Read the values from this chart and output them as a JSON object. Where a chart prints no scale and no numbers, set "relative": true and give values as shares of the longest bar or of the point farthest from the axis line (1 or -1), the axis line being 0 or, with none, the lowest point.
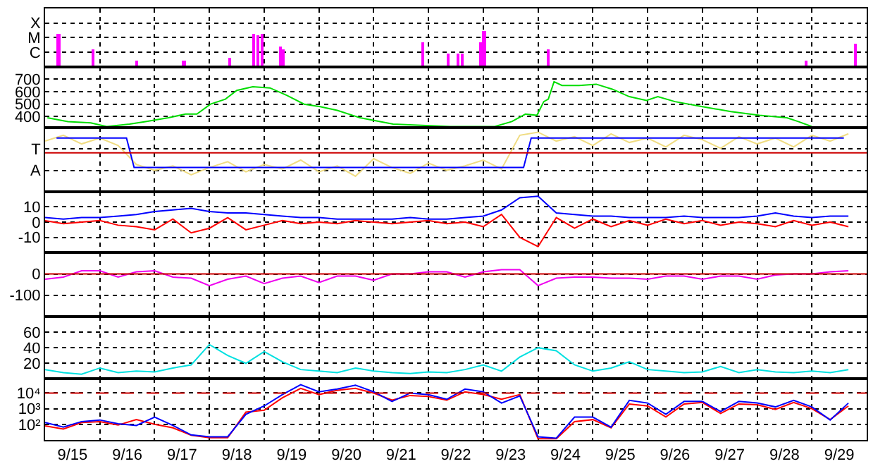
{
  "chart_data": [
    {
      "type": "bar",
      "xlim": [
        "--09-15",
        "--09-30"
      ],
      "relative": true,
      "annotations": [
        "X",
        "M",
        "C"
      ],
      "grid": true,
      "tick_labels": "y",
      "xticks": [
        {
          "value": "--09-15T12:00",
          "label": "9/15"
        },
        {
          "value": "--09-16T12:00",
          "label": "9/16"
        },
        {
          "value": "--09-17T12:00",
          "label": "9/17"
        },
        {
          "value": "--09-18T12:00",
          "label": "9/18"
        },
        {
          "value": "--09-19T12:00",
          "label": "9/19"
        },
        {
          "value": "--09-20T12:00",
          "label": "9/20"
        },
        {
          "value": "--09-21T12:00",
          "label": "9/21"
        },
        {
          "value": "--09-22T12:00",
          "label": "9/22"
        },
        {
          "value": "--09-23T12:00",
          "label": "9/23"
        },
        {
          "value": "--09-24T12:00",
          "label": "9/24"
        },
        {
          "value": "--09-25T12:00",
          "label": "9/25"
        },
        {
          "value": "--09-26T12:00",
          "label": "9/26"
        },
        {
          "value": "--09-27T12:00",
          "label": "9/27"
        },
        {
          "value": "--09-28T12:00",
          "label": "9/28"
        },
        {
          "value": "--09-29T12:00",
          "label": "9/29"
        },
        {
          "value": "--09-16",
          "label": null
        },
        {
          "value": "--09-17",
          "label": null
        },
        {
          "value": "--09-18",
          "label": null
        },
        {
          "value": "--09-19",
          "label": null
        },
        {
          "value": "--09-20",
          "label": null
        },
        {
          "value": "--09-21",
          "label": null
        },
        {
          "value": "--09-22",
          "label": null
        },
        {
          "value": "--09-23",
          "label": null
        },
        {
          "value": "--09-24",
          "label": null
        },
        {
          "value": "--09-25",
          "label": null
        },
        {
          "value": "--09-26",
          "label": null
        },
        {
          "value": "--09-27",
          "label": null
        },
        {
          "value": "--09-28",
          "label": null
        },
        {
          "value": "--09-29",
          "label": null
        }
      ],
      "series": [
        {
          "color": "#ff00ff",
          "x": [
            "--09-15T06:00",
            "--09-15T21:00",
            "--09-16T16:30",
            "--09-17T13:00",
            "--09-18T09:00",
            "--09-18T19:30",
            "--09-18T21:30",
            "--09-18T23:20",
            "--09-19T07:30",
            "--09-19T08:40",
            "--09-21T21:30",
            "--09-22T08:40",
            "--09-22T13:00",
            "--09-22T14:50",
            "--09-22T22:50",
            "--09-23T00:30",
            "--09-24T04:20",
            "--09-28T21:30",
            "--09-29T19:00"
          ],
          "values": [
            0.92,
            0.46,
            0.15,
            0.15,
            0.23,
            0.92,
            0.85,
            0.92,
            0.54,
            0.46,
            0.69,
            0.38,
            0.38,
            0.38,
            0.69,
            1,
            0.46,
            0.15,
            0.62
          ]
        }
      ]
    },
    {
      "type": "line",
      "xlim": [
        "--09-15",
        "--09-30"
      ],
      "ylim": [
        310,
        800
      ],
      "yticks": [
        400,
        500,
        600,
        700
      ],
      "grid": true,
      "tick_labels": "y",
      "xticks": [
        {
          "value": "--09-15T12:00",
          "label": "9/15"
        },
        {
          "value": "--09-16T12:00",
          "label": "9/16"
        },
        {
          "value": "--09-17T12:00",
          "label": "9/17"
        },
        {
          "value": "--09-18T12:00",
          "label": "9/18"
        },
        {
          "value": "--09-19T12:00",
          "label": "9/19"
        },
        {
          "value": "--09-20T12:00",
          "label": "9/20"
        },
        {
          "value": "--09-21T12:00",
          "label": "9/21"
        },
        {
          "value": "--09-22T12:00",
          "label": "9/22"
        },
        {
          "value": "--09-23T12:00",
          "label": "9/23"
        },
        {
          "value": "--09-24T12:00",
          "label": "9/24"
        },
        {
          "value": "--09-25T12:00",
          "label": "9/25"
        },
        {
          "value": "--09-26T12:00",
          "label": "9/26"
        },
        {
          "value": "--09-27T12:00",
          "label": "9/27"
        },
        {
          "value": "--09-28T12:00",
          "label": "9/28"
        },
        {
          "value": "--09-29T12:00",
          "label": "9/29"
        },
        {
          "value": "--09-16",
          "label": null
        },
        {
          "value": "--09-17",
          "label": null
        },
        {
          "value": "--09-18",
          "label": null
        },
        {
          "value": "--09-19",
          "label": null
        },
        {
          "value": "--09-20",
          "label": null
        },
        {
          "value": "--09-21",
          "label": null
        },
        {
          "value": "--09-22",
          "label": null
        },
        {
          "value": "--09-23",
          "label": null
        },
        {
          "value": "--09-24",
          "label": null
        },
        {
          "value": "--09-25",
          "label": null
        },
        {
          "value": "--09-26",
          "label": null
        },
        {
          "value": "--09-27",
          "label": null
        },
        {
          "value": "--09-28",
          "label": null
        },
        {
          "value": "--09-29",
          "label": null
        }
      ],
      "series": [
        {
          "color": "#00dd00",
          "x": [
            "--09-15T01:00",
            "--09-15T10:00",
            "--09-15T20:00",
            "--09-16T03:00",
            "--09-16T13:00",
            "--09-16T20:00",
            "--09-17T06:00",
            "--09-17T13:30",
            "--09-17T18:30",
            "--09-18T00:30",
            "--09-18T07:00",
            "--09-18T12:00",
            "--09-18T19:00",
            "--09-19T02:30",
            "--09-19T10:00",
            "--09-19T17:30",
            "--09-20T00:30",
            "--09-20T08:00",
            "--09-20T18:00",
            "--09-21T08:30",
            "--09-21T21:00",
            "--09-22T09:30",
            "--09-22T21:30",
            "--09-23T05:00",
            "--09-23T12:30",
            "--09-23T18:30",
            "--09-23T23:30",
            "--09-24T02:30",
            "--09-24T04:30",
            "--09-24T07:00",
            "--09-24T10:30",
            "--09-24T18:00",
            "--09-25T01:30",
            "--09-25T08:30",
            "--09-25T16:00",
            "--09-25T23:30",
            "--09-26T04:30",
            "--09-26T12:00",
            "--09-27T00:00",
            "--09-27T12:30",
            "--09-28T01:00",
            "--09-28T13:00",
            "--09-28T18:00",
            "--09-29T00:00"
          ],
          "values": [
            390,
            360,
            350,
            320,
            340,
            360,
            390,
            420,
            420,
            500,
            540,
            610,
            640,
            630,
            570,
            500,
            480,
            450,
            390,
            340,
            330,
            320,
            320,
            320,
            360,
            420,
            410,
            520,
            540,
            680,
            650,
            650,
            660,
            620,
            560,
            530,
            560,
            520,
            480,
            440,
            410,
            390,
            360,
            320
          ]
        }
      ]
    },
    {
      "type": "line",
      "xlim": [
        "--09-15",
        "--09-30"
      ],
      "relative": true,
      "annotations": [
        "T",
        "A"
      ],
      "grid": true,
      "tick_labels": "y",
      "xticks": [
        {
          "value": "--09-15T12:00",
          "label": "9/15"
        },
        {
          "value": "--09-16T12:00",
          "label": "9/16"
        },
        {
          "value": "--09-17T12:00",
          "label": "9/17"
        },
        {
          "value": "--09-18T12:00",
          "label": "9/18"
        },
        {
          "value": "--09-19T12:00",
          "label": "9/19"
        },
        {
          "value": "--09-20T12:00",
          "label": "9/20"
        },
        {
          "value": "--09-21T12:00",
          "label": "9/21"
        },
        {
          "value": "--09-22T12:00",
          "label": "9/22"
        },
        {
          "value": "--09-23T12:00",
          "label": "9/23"
        },
        {
          "value": "--09-24T12:00",
          "label": "9/24"
        },
        {
          "value": "--09-25T12:00",
          "label": "9/25"
        },
        {
          "value": "--09-26T12:00",
          "label": "9/26"
        },
        {
          "value": "--09-27T12:00",
          "label": "9/27"
        },
        {
          "value": "--09-28T12:00",
          "label": "9/28"
        },
        {
          "value": "--09-29T12:00",
          "label": "9/29"
        },
        {
          "value": "--09-16",
          "label": null
        },
        {
          "value": "--09-17",
          "label": null
        },
        {
          "value": "--09-18",
          "label": null
        },
        {
          "value": "--09-19",
          "label": null
        },
        {
          "value": "--09-20",
          "label": null
        },
        {
          "value": "--09-21",
          "label": null
        },
        {
          "value": "--09-22",
          "label": null
        },
        {
          "value": "--09-23",
          "label": null
        },
        {
          "value": "--09-24",
          "label": null
        },
        {
          "value": "--09-25",
          "label": null
        },
        {
          "value": "--09-26",
          "label": null
        },
        {
          "value": "--09-27",
          "label": null
        },
        {
          "value": "--09-28",
          "label": null
        },
        {
          "value": "--09-29",
          "label": null
        }
      ],
      "ref_lines": [
        {
          "axis": "y",
          "value": 0,
          "color": "#cc0000"
        }
      ],
      "x": [
        "--09-15T00:00",
        "--09-15T08:00",
        "--09-15T16:00",
        "--09-16T00:00",
        "--09-16T08:00",
        "--09-16T16:00",
        "--09-17T00:00",
        "--09-17T08:00",
        "--09-17T16:00",
        "--09-18T00:00",
        "--09-18T08:00",
        "--09-18T16:00",
        "--09-19T00:00",
        "--09-19T08:00",
        "--09-19T16:00",
        "--09-20T00:00",
        "--09-20T08:00",
        "--09-20T16:00",
        "--09-21T00:00",
        "--09-21T08:00",
        "--09-21T16:00",
        "--09-22T00:00",
        "--09-22T08:00",
        "--09-22T16:00",
        "--09-23T00:00",
        "--09-23T08:00",
        "--09-23T16:00",
        "--09-24T00:00",
        "--09-24T08:00",
        "--09-24T16:00",
        "--09-25T00:00",
        "--09-25T08:00",
        "--09-25T16:00",
        "--09-26T00:00",
        "--09-26T08:00",
        "--09-26T16:00",
        "--09-27T00:00",
        "--09-27T08:00",
        "--09-27T16:00",
        "--09-28T00:00",
        "--09-28T08:00",
        "--09-28T16:00",
        "--09-29T00:00",
        "--09-29T08:00",
        "--09-29T16:00"
      ],
      "series": [
        {
          "color": "#f0dc82",
          "values": [
            0.5,
            0.75,
            0.38,
            0.63,
            0.31,
            -0.5,
            -0.75,
            -0.56,
            -0.94,
            -0.63,
            -0.38,
            -0.81,
            -0.5,
            -0.69,
            -0.31,
            -0.81,
            -0.56,
            -1,
            -0.25,
            -0.63,
            -0.88,
            -0.44,
            -0.75,
            -0.56,
            -0.31,
            -0.69,
            0.75,
            0.88,
            0.5,
            0.69,
            0.31,
            0.81,
            0.44,
            0.63,
            0.25,
            0.75,
            0.56,
            0.19,
            0.69,
            0.38,
            0.63,
            0.25,
            0.75,
            0.5,
            0.81
          ]
        },
        {
          "color": "#0000ff",
          "x": [
            "--09-15T05:00",
            "--09-16T11:40",
            "--09-16T15:00",
            "--09-23T17:40",
            "--09-23T21:00",
            "--09-29T14:00"
          ],
          "values": [
            0.63,
            0.63,
            -0.63,
            -0.63,
            0.63,
            0.63
          ]
        }
      ]
    },
    {
      "type": "line",
      "xlim": [
        "--09-15",
        "--09-30"
      ],
      "ylim": [
        -20,
        20
      ],
      "yticks": [
        -10,
        0,
        10
      ],
      "grid": true,
      "tick_labels": "y",
      "xticks": [
        {
          "value": "--09-15T12:00",
          "label": "9/15"
        },
        {
          "value": "--09-16T12:00",
          "label": "9/16"
        },
        {
          "value": "--09-17T12:00",
          "label": "9/17"
        },
        {
          "value": "--09-18T12:00",
          "label": "9/18"
        },
        {
          "value": "--09-19T12:00",
          "label": "9/19"
        },
        {
          "value": "--09-20T12:00",
          "label": "9/20"
        },
        {
          "value": "--09-21T12:00",
          "label": "9/21"
        },
        {
          "value": "--09-22T12:00",
          "label": "9/22"
        },
        {
          "value": "--09-23T12:00",
          "label": "9/23"
        },
        {
          "value": "--09-24T12:00",
          "label": "9/24"
        },
        {
          "value": "--09-25T12:00",
          "label": "9/25"
        },
        {
          "value": "--09-26T12:00",
          "label": "9/26"
        },
        {
          "value": "--09-27T12:00",
          "label": "9/27"
        },
        {
          "value": "--09-28T12:00",
          "label": "9/28"
        },
        {
          "value": "--09-29T12:00",
          "label": "9/29"
        },
        {
          "value": "--09-16",
          "label": null
        },
        {
          "value": "--09-17",
          "label": null
        },
        {
          "value": "--09-18",
          "label": null
        },
        {
          "value": "--09-19",
          "label": null
        },
        {
          "value": "--09-20",
          "label": null
        },
        {
          "value": "--09-21",
          "label": null
        },
        {
          "value": "--09-22",
          "label": null
        },
        {
          "value": "--09-23",
          "label": null
        },
        {
          "value": "--09-24",
          "label": null
        },
        {
          "value": "--09-25",
          "label": null
        },
        {
          "value": "--09-26",
          "label": null
        },
        {
          "value": "--09-27",
          "label": null
        },
        {
          "value": "--09-28",
          "label": null
        },
        {
          "value": "--09-29",
          "label": null
        }
      ],
      "x": [
        "--09-15T00:00",
        "--09-15T08:00",
        "--09-15T16:00",
        "--09-16T00:00",
        "--09-16T08:00",
        "--09-16T16:00",
        "--09-17T00:00",
        "--09-17T08:00",
        "--09-17T16:00",
        "--09-18T00:00",
        "--09-18T08:00",
        "--09-18T16:00",
        "--09-19T00:00",
        "--09-19T08:00",
        "--09-19T16:00",
        "--09-20T00:00",
        "--09-20T08:00",
        "--09-20T16:00",
        "--09-21T00:00",
        "--09-21T08:00",
        "--09-21T16:00",
        "--09-22T00:00",
        "--09-22T08:00",
        "--09-22T16:00",
        "--09-23T00:00",
        "--09-23T08:00",
        "--09-23T16:00",
        "--09-24T00:00",
        "--09-24T08:00",
        "--09-24T16:00",
        "--09-25T00:00",
        "--09-25T08:00",
        "--09-25T16:00",
        "--09-26T00:00",
        "--09-26T08:00",
        "--09-26T16:00",
        "--09-27T00:00",
        "--09-27T08:00",
        "--09-27T16:00",
        "--09-28T00:00",
        "--09-28T08:00",
        "--09-28T16:00",
        "--09-29T00:00",
        "--09-29T08:00",
        "--09-29T16:00"
      ],
      "series": [
        {
          "color": "#0000ff",
          "values": [
            3,
            2,
            3,
            3,
            4,
            5,
            7,
            8,
            9,
            7,
            6,
            6,
            5,
            4,
            3,
            3,
            2,
            2,
            2,
            2,
            3,
            2,
            2,
            3,
            4,
            8,
            16,
            17,
            6,
            5,
            4,
            4,
            3,
            3,
            3,
            4,
            3,
            3,
            3,
            4,
            6,
            4,
            3,
            4,
            4
          ]
        },
        {
          "color": "#ff0000",
          "values": [
            1,
            -1,
            0,
            1,
            -2,
            -3,
            -5,
            2,
            -7,
            -4,
            3,
            -5,
            -2,
            1,
            -1,
            0,
            -1,
            1,
            0,
            -1,
            0,
            1,
            -1,
            0,
            -3,
            5,
            -10,
            -16,
            3,
            -4,
            2,
            -3,
            1,
            -2,
            2,
            -1,
            1,
            -2,
            0,
            -1,
            -3,
            1,
            -2,
            0,
            -3
          ]
        }
      ]
    },
    {
      "type": "line",
      "xlim": [
        "--09-15",
        "--09-30"
      ],
      "ylim": [
        -200,
        100
      ],
      "yticks": [
        -100,
        0
      ],
      "grid": true,
      "tick_labels": "y",
      "xticks": [
        {
          "value": "--09-15T12:00",
          "label": "9/15"
        },
        {
          "value": "--09-16T12:00",
          "label": "9/16"
        },
        {
          "value": "--09-17T12:00",
          "label": "9/17"
        },
        {
          "value": "--09-18T12:00",
          "label": "9/18"
        },
        {
          "value": "--09-19T12:00",
          "label": "9/19"
        },
        {
          "value": "--09-20T12:00",
          "label": "9/20"
        },
        {
          "value": "--09-21T12:00",
          "label": "9/21"
        },
        {
          "value": "--09-22T12:00",
          "label": "9/22"
        },
        {
          "value": "--09-23T12:00",
          "label": "9/23"
        },
        {
          "value": "--09-24T12:00",
          "label": "9/24"
        },
        {
          "value": "--09-25T12:00",
          "label": "9/25"
        },
        {
          "value": "--09-26T12:00",
          "label": "9/26"
        },
        {
          "value": "--09-27T12:00",
          "label": "9/27"
        },
        {
          "value": "--09-28T12:00",
          "label": "9/28"
        },
        {
          "value": "--09-29T12:00",
          "label": "9/29"
        },
        {
          "value": "--09-16",
          "label": null
        },
        {
          "value": "--09-17",
          "label": null
        },
        {
          "value": "--09-18",
          "label": null
        },
        {
          "value": "--09-19",
          "label": null
        },
        {
          "value": "--09-20",
          "label": null
        },
        {
          "value": "--09-21",
          "label": null
        },
        {
          "value": "--09-22",
          "label": null
        },
        {
          "value": "--09-23",
          "label": null
        },
        {
          "value": "--09-24",
          "label": null
        },
        {
          "value": "--09-25",
          "label": null
        },
        {
          "value": "--09-26",
          "label": null
        },
        {
          "value": "--09-27",
          "label": null
        },
        {
          "value": "--09-28",
          "label": null
        },
        {
          "value": "--09-29",
          "label": null
        }
      ],
      "ref_lines": [
        {
          "axis": "y",
          "value": 0,
          "color": "#cc0000"
        }
      ],
      "x": [
        "--09-15T00:00",
        "--09-15T08:00",
        "--09-15T16:00",
        "--09-16T00:00",
        "--09-16T08:00",
        "--09-16T16:00",
        "--09-17T00:00",
        "--09-17T08:00",
        "--09-17T16:00",
        "--09-18T00:00",
        "--09-18T08:00",
        "--09-18T16:00",
        "--09-19T00:00",
        "--09-19T08:00",
        "--09-19T16:00",
        "--09-20T00:00",
        "--09-20T08:00",
        "--09-20T16:00",
        "--09-21T00:00",
        "--09-21T08:00",
        "--09-21T16:00",
        "--09-22T00:00",
        "--09-22T08:00",
        "--09-22T16:00",
        "--09-23T00:00",
        "--09-23T08:00",
        "--09-23T16:00",
        "--09-24T00:00",
        "--09-24T08:00",
        "--09-24T16:00",
        "--09-25T00:00",
        "--09-25T08:00",
        "--09-25T16:00",
        "--09-26T00:00",
        "--09-26T08:00",
        "--09-26T16:00",
        "--09-27T00:00",
        "--09-27T08:00",
        "--09-27T16:00",
        "--09-28T00:00",
        "--09-28T08:00",
        "--09-28T16:00",
        "--09-29T00:00",
        "--09-29T08:00",
        "--09-29T16:00"
      ],
      "series": [
        {
          "color": "#ee00ee",
          "values": [
            -25,
            -15,
            15,
            15,
            -15,
            10,
            15,
            -15,
            -20,
            -55,
            -25,
            -10,
            -45,
            -20,
            -10,
            -40,
            -10,
            -10,
            -30,
            0,
            0,
            10,
            10,
            -15,
            10,
            20,
            20,
            -55,
            -20,
            -15,
            -15,
            -20,
            -20,
            -25,
            -10,
            -10,
            -25,
            -10,
            -10,
            -25,
            -5,
            0,
            0,
            10,
            15
          ]
        }
      ]
    },
    {
      "type": "line",
      "xlim": [
        "--09-15",
        "--09-30"
      ],
      "ylim": [
        0,
        80
      ],
      "yticks": [
        20,
        40,
        60
      ],
      "grid": true,
      "tick_labels": "y",
      "xticks": [
        {
          "value": "--09-15T12:00",
          "label": "9/15"
        },
        {
          "value": "--09-16T12:00",
          "label": "9/16"
        },
        {
          "value": "--09-17T12:00",
          "label": "9/17"
        },
        {
          "value": "--09-18T12:00",
          "label": "9/18"
        },
        {
          "value": "--09-19T12:00",
          "label": "9/19"
        },
        {
          "value": "--09-20T12:00",
          "label": "9/20"
        },
        {
          "value": "--09-21T12:00",
          "label": "9/21"
        },
        {
          "value": "--09-22T12:00",
          "label": "9/22"
        },
        {
          "value": "--09-23T12:00",
          "label": "9/23"
        },
        {
          "value": "--09-24T12:00",
          "label": "9/24"
        },
        {
          "value": "--09-25T12:00",
          "label": "9/25"
        },
        {
          "value": "--09-26T12:00",
          "label": "9/26"
        },
        {
          "value": "--09-27T12:00",
          "label": "9/27"
        },
        {
          "value": "--09-28T12:00",
          "label": "9/28"
        },
        {
          "value": "--09-29T12:00",
          "label": "9/29"
        },
        {
          "value": "--09-16",
          "label": null
        },
        {
          "value": "--09-17",
          "label": null
        },
        {
          "value": "--09-18",
          "label": null
        },
        {
          "value": "--09-19",
          "label": null
        },
        {
          "value": "--09-20",
          "label": null
        },
        {
          "value": "--09-21",
          "label": null
        },
        {
          "value": "--09-22",
          "label": null
        },
        {
          "value": "--09-23",
          "label": null
        },
        {
          "value": "--09-24",
          "label": null
        },
        {
          "value": "--09-25",
          "label": null
        },
        {
          "value": "--09-26",
          "label": null
        },
        {
          "value": "--09-27",
          "label": null
        },
        {
          "value": "--09-28",
          "label": null
        },
        {
          "value": "--09-29",
          "label": null
        }
      ],
      "x": [
        "--09-15T00:00",
        "--09-15T08:00",
        "--09-15T16:00",
        "--09-16T00:00",
        "--09-16T08:00",
        "--09-16T16:00",
        "--09-17T00:00",
        "--09-17T08:00",
        "--09-17T16:00",
        "--09-18T00:00",
        "--09-18T08:00",
        "--09-18T16:00",
        "--09-19T00:00",
        "--09-19T08:00",
        "--09-19T16:00",
        "--09-20T00:00",
        "--09-20T08:00",
        "--09-20T16:00",
        "--09-21T00:00",
        "--09-21T08:00",
        "--09-21T16:00",
        "--09-22T00:00",
        "--09-22T08:00",
        "--09-22T16:00",
        "--09-23T00:00",
        "--09-23T08:00",
        "--09-23T16:00",
        "--09-24T00:00",
        "--09-24T08:00",
        "--09-24T16:00",
        "--09-25T00:00",
        "--09-25T08:00",
        "--09-25T16:00",
        "--09-26T00:00",
        "--09-26T08:00",
        "--09-26T16:00",
        "--09-27T00:00",
        "--09-27T08:00",
        "--09-27T16:00",
        "--09-28T00:00",
        "--09-28T08:00",
        "--09-28T16:00",
        "--09-29T00:00",
        "--09-29T08:00",
        "--09-29T16:00"
      ],
      "series": [
        {
          "color": "#00e0e0",
          "values": [
            12,
            8,
            6,
            14,
            8,
            10,
            9,
            14,
            18,
            44,
            30,
            20,
            35,
            22,
            12,
            10,
            8,
            14,
            10,
            8,
            7,
            9,
            8,
            12,
            18,
            10,
            28,
            40,
            36,
            18,
            10,
            14,
            22,
            12,
            10,
            8,
            9,
            16,
            8,
            12,
            9,
            8,
            10,
            8,
            12
          ]
        }
      ]
    },
    {
      "type": "line",
      "xlim": [
        "--09-15",
        "--09-30"
      ],
      "log": true,
      "ylim": [
        10,
        80000
      ],
      "yticks": [
        {
          "value": 100,
          "label": "10²"
        },
        {
          "value": 1000,
          "label": "10³"
        },
        {
          "value": 10000,
          "label": "10⁴"
        }
      ],
      "grid": true,
      "xticks": [
        {
          "value": "--09-15T12:00",
          "label": "9/15"
        },
        {
          "value": "--09-16T12:00",
          "label": "9/16"
        },
        {
          "value": "--09-17T12:00",
          "label": "9/17"
        },
        {
          "value": "--09-18T12:00",
          "label": "9/18"
        },
        {
          "value": "--09-19T12:00",
          "label": "9/19"
        },
        {
          "value": "--09-20T12:00",
          "label": "9/20"
        },
        {
          "value": "--09-21T12:00",
          "label": "9/21"
        },
        {
          "value": "--09-22T12:00",
          "label": "9/22"
        },
        {
          "value": "--09-23T12:00",
          "label": "9/23"
        },
        {
          "value": "--09-24T12:00",
          "label": "9/24"
        },
        {
          "value": "--09-25T12:00",
          "label": "9/25"
        },
        {
          "value": "--09-26T12:00",
          "label": "9/26"
        },
        {
          "value": "--09-27T12:00",
          "label": "9/27"
        },
        {
          "value": "--09-28T12:00",
          "label": "9/28"
        },
        {
          "value": "--09-29T12:00",
          "label": "9/29"
        },
        {
          "value": "--09-16",
          "label": null
        },
        {
          "value": "--09-17",
          "label": null
        },
        {
          "value": "--09-18",
          "label": null
        },
        {
          "value": "--09-19",
          "label": null
        },
        {
          "value": "--09-20",
          "label": null
        },
        {
          "value": "--09-21",
          "label": null
        },
        {
          "value": "--09-22",
          "label": null
        },
        {
          "value": "--09-23",
          "label": null
        },
        {
          "value": "--09-24",
          "label": null
        },
        {
          "value": "--09-25",
          "label": null
        },
        {
          "value": "--09-26",
          "label": null
        },
        {
          "value": "--09-27",
          "label": null
        },
        {
          "value": "--09-28",
          "label": null
        },
        {
          "value": "--09-29",
          "label": null
        }
      ],
      "ref_lines": [
        {
          "axis": "y",
          "value": 10000,
          "color": "#cc0000",
          "line_style": "dashed"
        }
      ],
      "x": [
        "--09-15T00:00",
        "--09-15T08:00",
        "--09-15T16:00",
        "--09-16T00:00",
        "--09-16T08:00",
        "--09-16T16:00",
        "--09-17T00:00",
        "--09-17T08:00",
        "--09-17T16:00",
        "--09-18T00:00",
        "--09-18T08:00",
        "--09-18T16:00",
        "--09-19T00:00",
        "--09-19T08:00",
        "--09-19T16:00",
        "--09-20T00:00",
        "--09-20T08:00",
        "--09-20T16:00",
        "--09-21T00:00",
        "--09-21T08:00",
        "--09-21T16:00",
        "--09-22T00:00",
        "--09-22T08:00",
        "--09-22T16:00",
        "--09-23T00:00",
        "--09-23T08:00",
        "--09-23T16:00",
        "--09-24T00:00",
        "--09-24T08:00",
        "--09-24T16:00",
        "--09-25T00:00",
        "--09-25T08:00",
        "--09-25T16:00",
        "--09-26T00:00",
        "--09-26T08:00",
        "--09-26T16:00",
        "--09-27T00:00",
        "--09-27T08:00",
        "--09-27T16:00",
        "--09-28T00:00",
        "--09-28T08:00",
        "--09-28T16:00",
        "--09-29T00:00",
        "--09-29T08:00",
        "--09-29T16:00"
      ],
      "series": [
        {
          "color": "#ff0000",
          "values": [
            80,
            50,
            130,
            150,
            90,
            200,
            100,
            60,
            20,
            14,
            14,
            600,
            800,
            5000,
            20000,
            8000,
            15000,
            20000,
            10000,
            3500,
            7000,
            6000,
            3500,
            12000,
            8000,
            4000,
            8000,
            12,
            12,
            150,
            200,
            60,
            2000,
            1500,
            300,
            2000,
            2500,
            500,
            2000,
            1800,
            900,
            2500,
            1000,
            200,
            1500
          ]
        },
        {
          "color": "#0000ff",
          "values": [
            130,
            66,
            150,
            190,
            110,
            85,
            290,
            85,
            21,
            16,
            16,
            440,
            1500,
            8000,
            34000,
            12000,
            18000,
            32000,
            12000,
            2900,
            10000,
            7800,
            4000,
            18000,
            12000,
            2300,
            6600,
            16,
            13,
            290,
            290,
            66,
            3400,
            2300,
            440,
            2900,
            2900,
            660,
            2900,
            2300,
            1300,
            3400,
            1300,
            190,
            2300
          ]
        }
      ]
    }
  ]
}
